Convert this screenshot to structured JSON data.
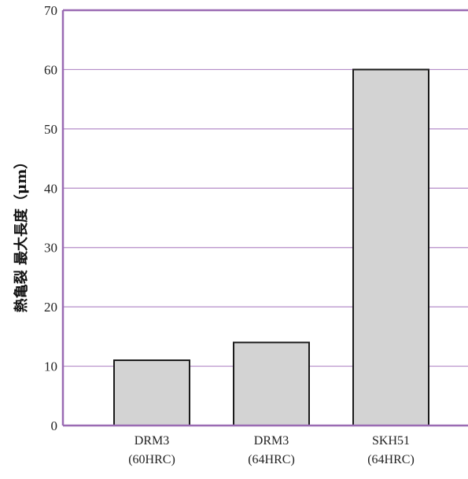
{
  "chart_data": {
    "type": "bar",
    "title": "",
    "xlabel": "",
    "ylabel": "熱亀裂 最大長度（μm）",
    "ylim": [
      0,
      70
    ],
    "yticks": [
      0,
      10,
      20,
      30,
      40,
      50,
      60,
      70
    ],
    "grid": true,
    "legend": "none",
    "categories": [
      {
        "line1": "DRM3",
        "line2": "(60HRC)"
      },
      {
        "line1": "DRM3",
        "line2": "(64HRC)"
      },
      {
        "line1": "SKH51",
        "line2": "(64HRC)"
      }
    ],
    "values": [
      11,
      14,
      60
    ],
    "colors": {
      "bar_fill": "#d3d3d3",
      "bar_stroke": "#1a1a1a",
      "gridline": "#b48cc8",
      "axis": "#9a6bb3"
    }
  }
}
